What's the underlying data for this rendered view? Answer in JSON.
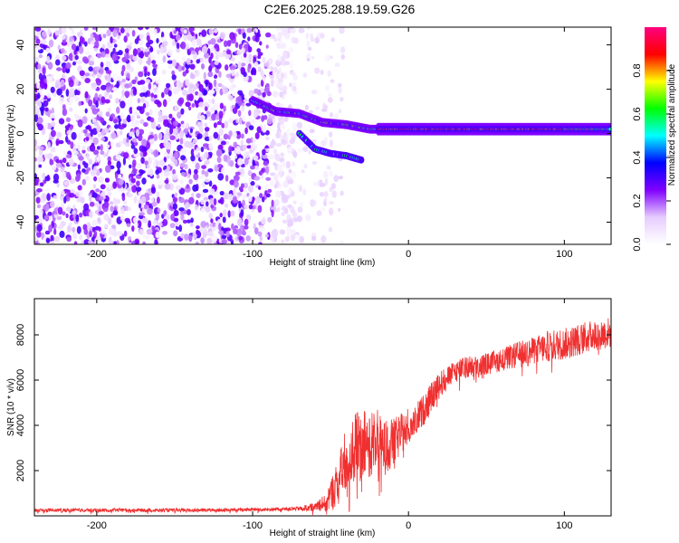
{
  "title": "C2E6.2025.288.19.59.G26",
  "chart_data": [
    {
      "type": "heatmap",
      "name": "spectrogram",
      "xlabel": "Height of straight line (km)",
      "ylabel": "Frequency (Hz)",
      "xlim": [
        -240,
        130
      ],
      "ylim": [
        -50,
        48
      ],
      "xticks": [
        -200,
        -100,
        0,
        100
      ],
      "yticks": [
        -40,
        -20,
        0,
        20,
        40
      ],
      "grid": false,
      "colorbar": {
        "label": "Normalized spectral amplitude",
        "range": [
          0,
          1
        ],
        "ticks": [
          "0.0",
          "0.2",
          "0.4",
          "0.6",
          "0.8"
        ],
        "colormap": [
          "#ffffff",
          "#e6ccff",
          "#8000ff",
          "#0000ff",
          "#00ffff",
          "#00ff00",
          "#ffff00",
          "#ff0000",
          "#ff0080"
        ]
      },
      "features": {
        "noise_region_x": [
          -240,
          -62
        ],
        "noise_level": 0.3,
        "carrier_trace": [
          {
            "x": -100,
            "y": 15
          },
          {
            "x": -85,
            "y": 10
          },
          {
            "x": -70,
            "y": 9
          },
          {
            "x": -55,
            "y": 5
          },
          {
            "x": -40,
            "y": 4
          },
          {
            "x": -25,
            "y": 2
          },
          {
            "x": -10,
            "y": 2
          },
          {
            "x": 0,
            "y": 2
          },
          {
            "x": 50,
            "y": 2
          },
          {
            "x": 100,
            "y": 2
          },
          {
            "x": 130,
            "y": 2
          }
        ],
        "secondary_trace": [
          {
            "x": -70,
            "y": 0
          },
          {
            "x": -60,
            "y": -7
          },
          {
            "x": -50,
            "y": -9
          },
          {
            "x": -40,
            "y": -10
          },
          {
            "x": -30,
            "y": -12
          }
        ]
      }
    },
    {
      "type": "line",
      "name": "snr",
      "xlabel": "Height of straight line (km)",
      "ylabel": "SNR (10 * v/v)",
      "xlim": [
        -240,
        130
      ],
      "ylim": [
        0,
        9600
      ],
      "xticks": [
        -200,
        -100,
        0,
        100
      ],
      "yticks": [
        2000,
        4000,
        6000,
        8000
      ],
      "grid": false,
      "color": "#f03030",
      "series": [
        {
          "x": [
            -240,
            -220,
            -200,
            -180,
            -160,
            -140,
            -120,
            -100,
            -80,
            -70,
            -60,
            -55,
            -50,
            -45,
            -40,
            -35,
            -30,
            -25,
            -20,
            -15,
            -10,
            -5,
            0,
            5,
            10,
            15,
            20,
            25,
            30,
            40,
            50,
            60,
            70,
            80,
            90,
            100,
            110,
            120,
            130
          ],
          "y": [
            250,
            250,
            250,
            250,
            250,
            250,
            260,
            280,
            300,
            320,
            400,
            600,
            900,
            1500,
            2500,
            3000,
            3100,
            3200,
            3300,
            3000,
            3200,
            3600,
            4000,
            4300,
            4700,
            5300,
            5800,
            6100,
            6400,
            6600,
            6700,
            6900,
            7100,
            7300,
            7500,
            7600,
            7800,
            8000,
            8100
          ],
          "noise": [
            80,
            80,
            80,
            80,
            80,
            80,
            80,
            80,
            80,
            100,
            200,
            400,
            700,
            1100,
            1400,
            1600,
            1600,
            1500,
            1400,
            1200,
            1100,
            900,
            800,
            700,
            700,
            600,
            600,
            500,
            500,
            500,
            500,
            500,
            600,
            600,
            700,
            700,
            700,
            700,
            700
          ]
        }
      ]
    }
  ]
}
